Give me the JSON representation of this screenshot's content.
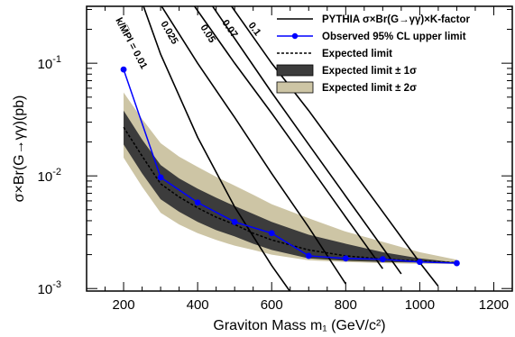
{
  "chart_data": {
    "type": "line",
    "title": "",
    "xlabel": "Graviton Mass m₁ (GeV/c²)",
    "ylabel": "σ×Br(G→γγ)(pb)",
    "xlim": [
      100,
      1250
    ],
    "ylim": [
      0.00095,
      0.32
    ],
    "yscale": "log",
    "xticks": [
      200,
      400,
      600,
      800,
      1000,
      1200
    ],
    "xtick_labels": [
      "200",
      "400",
      "600",
      "800",
      "1000",
      "1200"
    ],
    "ytick_labels": [
      {
        "base": "10",
        "exp": "-3",
        "value": 0.001
      },
      {
        "base": "10",
        "exp": "-2",
        "value": 0.01
      },
      {
        "base": "10",
        "exp": "-1",
        "value": 0.1
      }
    ],
    "legend_position": "top-right",
    "legend": [
      {
        "label": "PYTHIA σ×Br(G→γγ)×K-factor",
        "style": "line",
        "color": "#000000"
      },
      {
        "label": "Observed 95% CL upper limit",
        "style": "line-marker",
        "color": "#0000ff"
      },
      {
        "label": "Expected limit",
        "style": "dashed",
        "color": "#000000"
      },
      {
        "label": "Expected limit ± 1σ",
        "style": "box",
        "color": "#3c3c3c"
      },
      {
        "label": "Expected limit ± 2σ",
        "style": "box",
        "color": "#cdc5a5"
      }
    ],
    "observed": {
      "name": "Observed 95% CL upper limit",
      "color": "#0000ff",
      "x": [
        200,
        300,
        400,
        500,
        600,
        700,
        800,
        900,
        1000,
        1100
      ],
      "y": [
        0.088,
        0.0097,
        0.0058,
        0.0039,
        0.0031,
        0.00195,
        0.00185,
        0.00182,
        0.00172,
        0.00168
      ]
    },
    "expected": {
      "name": "Expected limit",
      "x": [
        200,
        250,
        300,
        350,
        400,
        450,
        500,
        550,
        600,
        700,
        800,
        900,
        1000,
        1100
      ],
      "y": [
        0.027,
        0.015,
        0.0085,
        0.0065,
        0.0052,
        0.0043,
        0.0037,
        0.0031,
        0.0027,
        0.0022,
        0.00195,
        0.00183,
        0.00175,
        0.0017
      ]
    },
    "band_1sigma": {
      "name": "Expected limit ± 1σ",
      "color": "#3c3c3c",
      "x": [
        200,
        250,
        300,
        350,
        400,
        450,
        500,
        550,
        600,
        700,
        800,
        900,
        1000,
        1100
      ],
      "upper": [
        0.038,
        0.021,
        0.0125,
        0.0095,
        0.0077,
        0.0064,
        0.0054,
        0.0046,
        0.0039,
        0.003,
        0.0025,
        0.0021,
        0.00185,
        0.0017
      ],
      "lower": [
        0.019,
        0.0105,
        0.0062,
        0.0048,
        0.0039,
        0.0033,
        0.0029,
        0.0025,
        0.0022,
        0.00185,
        0.00176,
        0.00172,
        0.0017,
        0.00168
      ]
    },
    "band_2sigma": {
      "name": "Expected limit ± 2σ",
      "color": "#cdc5a5",
      "x": [
        200,
        250,
        300,
        350,
        400,
        450,
        500,
        550,
        600,
        700,
        800,
        900,
        1000,
        1100
      ],
      "upper": [
        0.055,
        0.032,
        0.0195,
        0.0148,
        0.012,
        0.0098,
        0.0082,
        0.0068,
        0.0056,
        0.0042,
        0.0032,
        0.0026,
        0.0021,
        0.0018
      ],
      "lower": [
        0.0145,
        0.008,
        0.0047,
        0.0037,
        0.0031,
        0.0027,
        0.0024,
        0.0022,
        0.002,
        0.00178,
        0.00172,
        0.00168,
        0.00166,
        0.00165
      ]
    },
    "theory": [
      {
        "label": "k/M̅Pl = 0.01",
        "x": [
          200,
          300,
          400,
          500,
          600,
          700
        ],
        "y": [
          1.0,
          0.12,
          0.022,
          0.0053,
          0.0016,
          0.00055
        ]
      },
      {
        "label": "0.025",
        "x": [
          250,
          400,
          500,
          600,
          700,
          800
        ],
        "y": [
          0.6,
          0.1,
          0.033,
          0.0105,
          0.0035,
          0.0011
        ]
      },
      {
        "label": "0.05",
        "x": [
          350,
          500,
          600,
          700,
          800,
          900
        ],
        "y": [
          0.5,
          0.1,
          0.036,
          0.0125,
          0.0043,
          0.0015
        ]
      },
      {
        "label": "0.07",
        "x": [
          400,
          600,
          700,
          800,
          900,
          950
        ],
        "y": [
          0.5,
          0.055,
          0.019,
          0.0066,
          0.0023,
          0.00135
        ]
      },
      {
        "label": "0.1",
        "x": [
          450,
          600,
          700,
          800,
          900,
          1000,
          1050
        ],
        "y": [
          0.5,
          0.1,
          0.038,
          0.0135,
          0.0048,
          0.0017,
          0.00105
        ]
      }
    ]
  }
}
